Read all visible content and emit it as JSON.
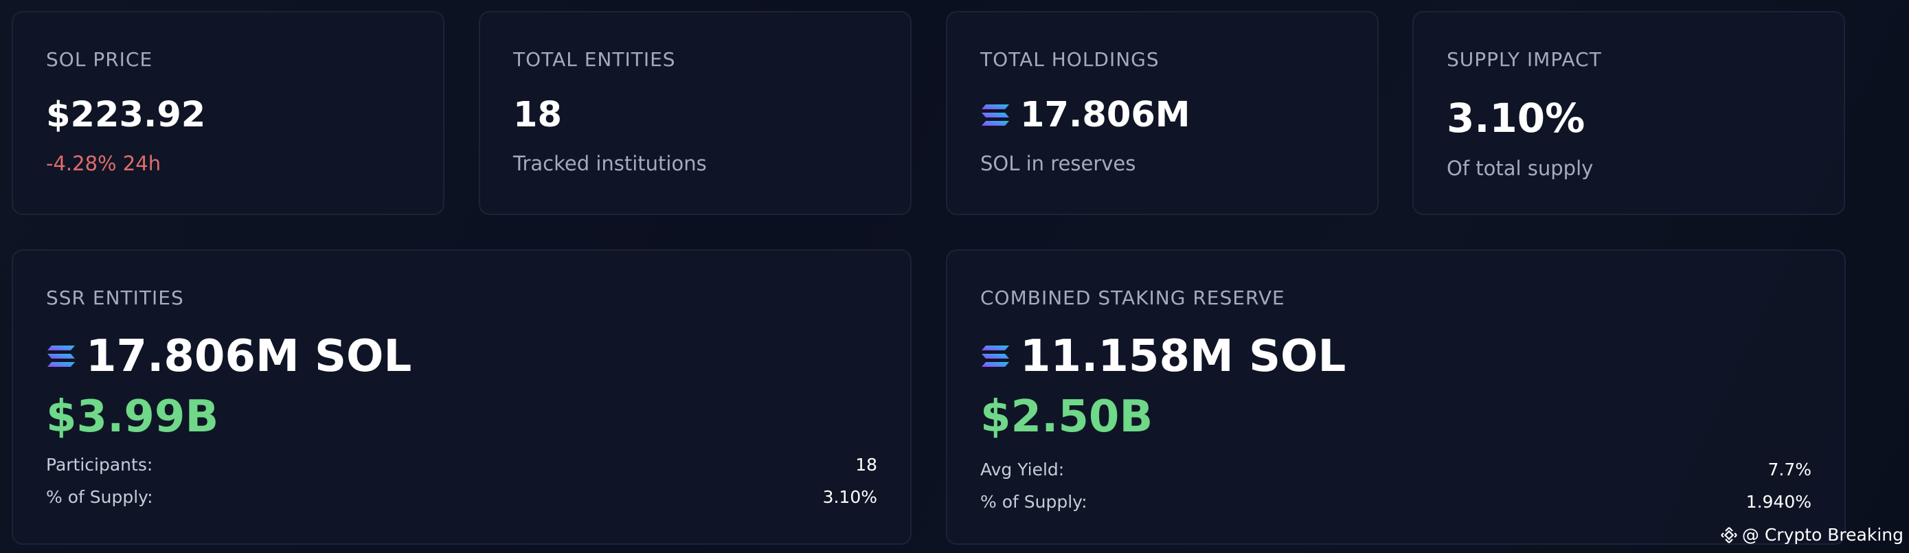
{
  "cards": {
    "sol_price": {
      "label": "SOL PRICE",
      "value": "$223.92",
      "change": "-4.28% 24h"
    },
    "total_entities": {
      "label": "TOTAL ENTITIES",
      "value": "18",
      "sub": "Tracked institutions"
    },
    "total_holdings": {
      "label": "TOTAL HOLDINGS",
      "value": "17.806M",
      "sub": "SOL in reserves",
      "icon": "solana-icon"
    },
    "supply_impact": {
      "label": "SUPPLY IMPACT",
      "value": "3.10%",
      "sub": "Of total supply"
    }
  },
  "ssr": {
    "label": "SSR ENTITIES",
    "amount": "17.806M SOL",
    "usd": "$3.99B",
    "rows": [
      {
        "label": "Participants:",
        "value": "18"
      },
      {
        "label": "% of Supply:",
        "value": "3.10%"
      }
    ]
  },
  "staking": {
    "label": "COMBINED STAKING RESERVE",
    "amount": "11.158M SOL",
    "usd": "$2.50B",
    "rows": [
      {
        "label": "Avg Yield:",
        "value": "7.7%"
      },
      {
        "label": "% of Supply:",
        "value": "1.940%"
      }
    ]
  },
  "watermark": {
    "text": "@ Crypto Breaking",
    "icon": "binance-icon"
  },
  "colors": {
    "background": "#0b1020",
    "card": "#101628",
    "border": "#1b2337",
    "muted": "#a3acbf",
    "negative": "#e06c6c",
    "positive": "#6fd889",
    "solana_gradient_start": "#9945ff",
    "solana_gradient_end": "#14f195"
  }
}
